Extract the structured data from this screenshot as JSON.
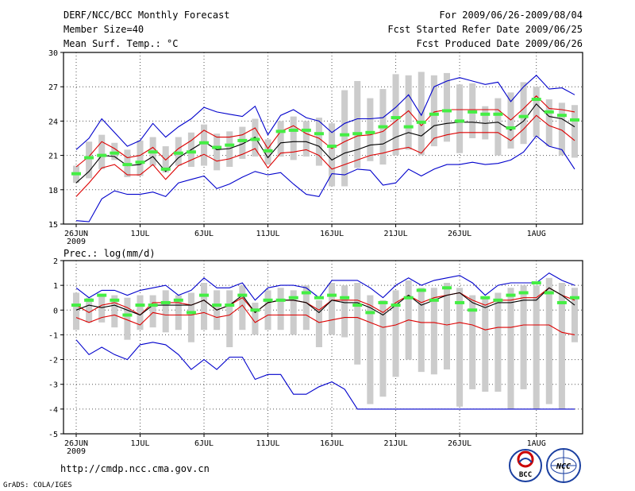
{
  "header": {
    "title": "DERF/NCC/BCC Monthly Forecast",
    "member_size": "Member Size=40",
    "variable": "Mean Surf. Temp.: °C",
    "period": "For 2009/06/26-2009/08/04",
    "refer_date": "Fcst Started Refer Date 2009/06/25",
    "produced_date": "Fcst Produced Date 2009/06/26"
  },
  "footer": {
    "url": "http://cmdp.ncc.cma.gov.cn",
    "credit": "GrADS: COLA/IGES",
    "logo_left_text": "BCC",
    "logo_right_text": "NCC"
  },
  "colors": {
    "median": "#000000",
    "spread": "#dd0000",
    "extreme": "#0000cc",
    "observed": "#44ee44",
    "box": "#cccccc"
  },
  "chart_data": [
    {
      "type": "ensemble-box-line",
      "title": "Mean Surf. Temp.: °C",
      "xlabel": "",
      "ylabel": "Mean Surf. Temp. (°C)",
      "ylim": [
        15,
        30
      ],
      "yticks": [
        "15",
        "18",
        "21",
        "24",
        "27",
        "30"
      ],
      "grid": true,
      "xticks": [
        "26JUN",
        "1JUL",
        "6JUL",
        "11JUL",
        "16JUL",
        "21JUL",
        "26JUL",
        "1AUG"
      ],
      "xticks_day_index": [
        0,
        5,
        10,
        15,
        20,
        25,
        30,
        36
      ],
      "year_label": "2009",
      "days": 40,
      "series": [
        {
          "name": "ensemble max",
          "color": "#0000cc",
          "values": [
            21.5,
            22.5,
            24.2,
            23.0,
            21.8,
            22.3,
            23.8,
            22.6,
            23.5,
            24.2,
            25.2,
            24.8,
            24.6,
            24.4,
            25.3,
            22.8,
            24.5,
            25.0,
            24.3,
            24.0,
            23.0,
            23.8,
            24.2,
            24.2,
            24.3,
            25.2,
            26.3,
            24.5,
            27.0,
            27.5,
            27.8,
            27.5,
            27.2,
            27.4,
            25.7,
            27.0,
            28.0,
            26.8,
            26.9,
            26.3
          ]
        },
        {
          "name": "upper quartile",
          "color": "#dd0000",
          "values": [
            20.0,
            20.9,
            22.2,
            21.6,
            20.8,
            21.0,
            21.7,
            20.6,
            21.6,
            22.3,
            23.2,
            22.6,
            22.6,
            22.8,
            23.4,
            21.6,
            23.1,
            23.6,
            22.9,
            22.5,
            21.6,
            22.2,
            22.7,
            22.8,
            23.1,
            24.0,
            24.9,
            23.6,
            24.8,
            25.0,
            25.0,
            25.0,
            25.0,
            25.0,
            24.1,
            25.1,
            26.2,
            25.1,
            25.0,
            24.8
          ]
        },
        {
          "name": "median",
          "color": "#000000",
          "values": [
            18.6,
            19.6,
            21.0,
            20.9,
            20.1,
            20.2,
            20.9,
            19.6,
            20.8,
            21.5,
            22.2,
            21.5,
            21.6,
            22.0,
            22.6,
            20.8,
            22.1,
            22.2,
            22.2,
            21.8,
            20.6,
            21.2,
            21.5,
            21.9,
            22.0,
            22.6,
            23.0,
            22.7,
            23.6,
            23.8,
            23.9,
            23.9,
            23.8,
            23.9,
            23.2,
            24.0,
            25.5,
            24.4,
            24.2,
            23.5
          ]
        },
        {
          "name": "lower quartile",
          "color": "#dd0000",
          "values": [
            17.4,
            18.6,
            19.9,
            20.2,
            19.3,
            19.3,
            20.2,
            18.9,
            20.1,
            20.6,
            21.1,
            20.5,
            20.7,
            21.1,
            21.6,
            19.9,
            21.2,
            21.3,
            21.5,
            21.0,
            19.8,
            20.2,
            20.6,
            21.0,
            21.2,
            21.5,
            21.7,
            21.2,
            22.5,
            22.8,
            23.0,
            23.0,
            23.0,
            23.0,
            22.3,
            23.3,
            24.5,
            23.6,
            23.2,
            22.3
          ]
        },
        {
          "name": "ensemble min",
          "color": "#0000cc",
          "values": [
            15.3,
            15.2,
            17.2,
            17.9,
            17.6,
            17.6,
            17.8,
            17.4,
            18.6,
            18.9,
            19.2,
            18.1,
            18.5,
            19.1,
            19.6,
            19.3,
            19.5,
            18.5,
            17.6,
            17.4,
            19.4,
            19.3,
            19.8,
            19.7,
            18.4,
            18.6,
            19.8,
            19.2,
            19.8,
            20.2,
            20.2,
            20.4,
            20.2,
            20.3,
            20.6,
            21.3,
            22.7,
            21.8,
            21.5,
            19.8
          ]
        },
        {
          "name": "observed / ensemble mean",
          "color": "#44ee44",
          "style": "dash-marker",
          "values": [
            19.4,
            20.8,
            21.0,
            21.2,
            20.2,
            20.4,
            21.3,
            19.8,
            21.2,
            21.3,
            22.1,
            21.7,
            21.9,
            22.3,
            22.4,
            21.4,
            23.1,
            23.2,
            23.2,
            22.9,
            21.8,
            22.8,
            22.9,
            23.0,
            23.5,
            24.3,
            23.5,
            23.9,
            24.6,
            24.9,
            24.0,
            24.8,
            24.6,
            24.6,
            23.4,
            24.4,
            25.9,
            24.8,
            24.5,
            24.1
          ]
        }
      ],
      "boxes": {
        "name": "ensemble spread",
        "color": "#cccccc",
        "low": [
          18.6,
          19.0,
          19.8,
          20.6,
          19.1,
          19.2,
          20.1,
          19.5,
          20.1,
          20.0,
          20.1,
          19.7,
          20.0,
          20.7,
          20.9,
          20.2,
          20.9,
          20.6,
          20.9,
          20.1,
          18.3,
          18.3,
          19.9,
          20.5,
          20.2,
          21.0,
          21.5,
          21.0,
          21.8,
          22.2,
          21.2,
          22.5,
          22.4,
          21.0,
          21.6,
          22.0,
          22.6,
          21.8,
          21.0,
          20.8
        ],
        "high": [
          20.1,
          22.2,
          22.8,
          22.1,
          21.5,
          22.3,
          22.6,
          21.8,
          22.6,
          23.0,
          23.7,
          22.9,
          23.1,
          23.5,
          24.2,
          22.4,
          24.0,
          24.4,
          24.0,
          24.3,
          23.8,
          26.7,
          27.5,
          26.0,
          26.8,
          28.1,
          28.0,
          28.3,
          28.0,
          28.2,
          27.2,
          27.3,
          25.3,
          26.0,
          26.5,
          27.4,
          27.0,
          25.9,
          25.6,
          25.4
        ]
      }
    },
    {
      "type": "ensemble-box-line",
      "title": "Prec.: log(mm/d)",
      "xlabel": "",
      "ylabel": "Prec. log(mm/d)",
      "ylim": [
        -5,
        2
      ],
      "yticks": [
        "-5",
        "-4",
        "-3",
        "-2",
        "-1",
        "0",
        "1",
        "2"
      ],
      "grid": true,
      "xticks": [
        "26JUN",
        "1JUL",
        "6JUL",
        "11JUL",
        "16JUL",
        "21JUL",
        "26JUL",
        "1AUG"
      ],
      "xticks_day_index": [
        0,
        5,
        10,
        15,
        20,
        25,
        30,
        36
      ],
      "year_label": "2009",
      "days": 40,
      "series": [
        {
          "name": "ensemble max",
          "color": "#0000cc",
          "values": [
            0.9,
            0.5,
            0.8,
            0.8,
            0.6,
            0.8,
            0.9,
            1.0,
            0.6,
            0.8,
            1.3,
            0.9,
            0.9,
            1.1,
            0.4,
            0.9,
            1.0,
            1.0,
            0.9,
            0.5,
            1.2,
            1.2,
            1.2,
            0.9,
            0.5,
            1.0,
            1.3,
            1.0,
            1.2,
            1.3,
            1.4,
            1.1,
            0.6,
            1.0,
            1.1,
            1.1,
            1.1,
            1.5,
            1.2,
            1.0
          ]
        },
        {
          "name": "upper quartile",
          "color": "#dd0000",
          "values": [
            0.2,
            -0.1,
            0.2,
            0.3,
            0.1,
            -0.2,
            0.3,
            0.3,
            0.3,
            0.2,
            0.4,
            0.0,
            0.2,
            0.5,
            -0.1,
            0.3,
            0.4,
            0.4,
            0.3,
            0.0,
            0.4,
            0.4,
            0.4,
            0.2,
            -0.1,
            0.3,
            0.6,
            0.3,
            0.5,
            0.6,
            0.7,
            0.4,
            0.2,
            0.4,
            0.4,
            0.5,
            0.5,
            0.9,
            0.6,
            0.4
          ]
        },
        {
          "name": "median",
          "color": "#000000",
          "values": [
            0.0,
            0.2,
            0.1,
            0.2,
            0.0,
            -0.2,
            0.2,
            0.2,
            0.2,
            0.2,
            0.4,
            0.0,
            0.2,
            0.6,
            -0.1,
            0.3,
            0.4,
            0.4,
            0.3,
            -0.1,
            0.4,
            0.3,
            0.3,
            0.1,
            -0.2,
            0.2,
            0.6,
            0.2,
            0.4,
            0.6,
            0.7,
            0.3,
            0.1,
            0.3,
            0.3,
            0.4,
            0.4,
            0.9,
            0.6,
            0.2
          ]
        },
        {
          "name": "lower quartile",
          "color": "#dd0000",
          "values": [
            -0.3,
            -0.5,
            -0.3,
            -0.2,
            -0.4,
            -0.6,
            -0.1,
            -0.2,
            -0.2,
            -0.2,
            -0.1,
            -0.3,
            -0.2,
            0.2,
            -0.5,
            -0.2,
            -0.2,
            -0.2,
            -0.2,
            -0.5,
            -0.4,
            -0.3,
            -0.3,
            -0.5,
            -0.7,
            -0.6,
            -0.4,
            -0.5,
            -0.5,
            -0.6,
            -0.5,
            -0.6,
            -0.8,
            -0.7,
            -0.7,
            -0.6,
            -0.6,
            -0.6,
            -0.9,
            -1.0
          ]
        },
        {
          "name": "ensemble min",
          "color": "#0000cc",
          "values": [
            -1.2,
            -1.8,
            -1.5,
            -1.8,
            -2.0,
            -1.4,
            -1.3,
            -1.4,
            -1.8,
            -2.4,
            -2.0,
            -2.4,
            -1.9,
            -1.9,
            -2.8,
            -2.6,
            -2.6,
            -3.4,
            -3.4,
            -3.1,
            -2.9,
            -3.2,
            -4.0,
            -4.0,
            -4.0,
            -4.0,
            -4.0,
            -4.0,
            -4.0,
            -4.0,
            -4.0,
            -4.0,
            -4.0,
            -4.0,
            -4.0,
            -4.0,
            -4.0,
            -4.0,
            -4.0,
            -4.0
          ]
        },
        {
          "name": "observed / ensemble mean",
          "color": "#44ee44",
          "style": "dash-marker",
          "values": [
            0.2,
            0.4,
            0.6,
            0.4,
            -0.2,
            0.2,
            0.2,
            0.3,
            0.4,
            -0.1,
            0.6,
            0.2,
            0.2,
            0.6,
            0.0,
            0.4,
            0.4,
            0.5,
            0.7,
            0.5,
            0.6,
            0.5,
            0.2,
            -0.1,
            0.3,
            0.2,
            0.5,
            0.8,
            0.4,
            0.9,
            0.3,
            0.0,
            0.5,
            0.4,
            0.6,
            0.7,
            1.1,
            0.7,
            0.3,
            0.5
          ]
        }
      ],
      "boxes": {
        "name": "ensemble spread",
        "color": "#cccccc",
        "low": [
          -0.8,
          -0.5,
          -0.5,
          -0.7,
          -1.2,
          -0.8,
          -0.7,
          -0.9,
          -0.8,
          -1.3,
          -0.8,
          -0.8,
          -1.5,
          -0.8,
          -1.0,
          -0.8,
          -0.8,
          -1.0,
          -0.8,
          -1.5,
          -1.0,
          -1.1,
          -2.2,
          -3.8,
          -3.5,
          -2.7,
          -2.0,
          -2.5,
          -2.6,
          -2.4,
          -3.9,
          -3.2,
          -3.3,
          -3.3,
          -4.0,
          -3.2,
          -4.0,
          -3.8,
          -4.0,
          -1.3
        ],
        "high": [
          0.7,
          0.5,
          0.6,
          0.6,
          0.5,
          0.6,
          0.6,
          0.8,
          0.6,
          0.7,
          1.1,
          0.8,
          0.8,
          1.0,
          0.3,
          0.8,
          0.9,
          0.8,
          1.0,
          0.4,
          1.1,
          1.0,
          1.1,
          0.6,
          0.4,
          0.8,
          1.2,
          0.9,
          0.9,
          1.1,
          0.9,
          0.6,
          0.5,
          0.7,
          0.9,
          1.0,
          1.0,
          1.3,
          1.1,
          0.9
        ]
      }
    }
  ]
}
